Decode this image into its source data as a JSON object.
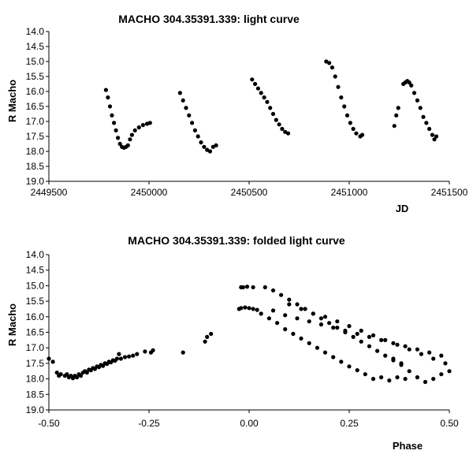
{
  "chart_data": [
    {
      "type": "scatter",
      "title": "MACHO 304.35391.339: light curve",
      "xlabel": "JD",
      "ylabel": "R Macho",
      "xlim": [
        2449500,
        2451500
      ],
      "ylim": [
        14.0,
        19.0
      ],
      "y_inverted": true,
      "x_ticks": [
        2449500,
        2450000,
        2450500,
        2451000,
        2451500
      ],
      "x_tick_labels": [
        "2449500",
        "2450000",
        "2450500",
        "2451000",
        "2451500"
      ],
      "y_ticks": [
        14.0,
        14.5,
        15.0,
        15.5,
        16.0,
        16.5,
        17.0,
        17.5,
        18.0,
        18.5,
        19.0
      ],
      "y_tick_labels": [
        "14.0",
        "14.5",
        "15.0",
        "15.5",
        "16.0",
        "16.5",
        "17.0",
        "17.5",
        "18.0",
        "18.5",
        "19.0"
      ],
      "grid": false,
      "series": [
        {
          "marker_color": "#000000",
          "points": [
            [
              2449785,
              15.95
            ],
            [
              2449795,
              16.2
            ],
            [
              2449805,
              16.5
            ],
            [
              2449815,
              16.8
            ],
            [
              2449825,
              17.05
            ],
            [
              2449835,
              17.3
            ],
            [
              2449845,
              17.55
            ],
            [
              2449855,
              17.75
            ],
            [
              2449865,
              17.85
            ],
            [
              2449875,
              17.88
            ],
            [
              2449885,
              17.85
            ],
            [
              2449895,
              17.8
            ],
            [
              2449905,
              17.6
            ],
            [
              2449915,
              17.45
            ],
            [
              2449930,
              17.3
            ],
            [
              2449950,
              17.2
            ],
            [
              2449970,
              17.12
            ],
            [
              2449990,
              17.08
            ],
            [
              2450005,
              17.05
            ],
            [
              2450155,
              16.05
            ],
            [
              2450170,
              16.3
            ],
            [
              2450185,
              16.55
            ],
            [
              2450200,
              16.8
            ],
            [
              2450215,
              17.05
            ],
            [
              2450230,
              17.3
            ],
            [
              2450245,
              17.5
            ],
            [
              2450260,
              17.7
            ],
            [
              2450275,
              17.85
            ],
            [
              2450290,
              17.95
            ],
            [
              2450305,
              18.0
            ],
            [
              2450320,
              17.85
            ],
            [
              2450335,
              17.8
            ],
            [
              2450515,
              15.6
            ],
            [
              2450530,
              15.75
            ],
            [
              2450545,
              15.9
            ],
            [
              2450560,
              16.05
            ],
            [
              2450575,
              16.2
            ],
            [
              2450590,
              16.35
            ],
            [
              2450605,
              16.55
            ],
            [
              2450620,
              16.75
            ],
            [
              2450635,
              16.95
            ],
            [
              2450650,
              17.1
            ],
            [
              2450665,
              17.25
            ],
            [
              2450680,
              17.35
            ],
            [
              2450695,
              17.4
            ],
            [
              2450885,
              15.0
            ],
            [
              2450900,
              15.05
            ],
            [
              2450915,
              15.2
            ],
            [
              2450930,
              15.5
            ],
            [
              2450945,
              15.85
            ],
            [
              2450960,
              16.2
            ],
            [
              2450975,
              16.5
            ],
            [
              2450990,
              16.8
            ],
            [
              2451005,
              17.05
            ],
            [
              2451020,
              17.25
            ],
            [
              2451035,
              17.4
            ],
            [
              2451055,
              17.5
            ],
            [
              2451065,
              17.45
            ],
            [
              2451225,
              17.15
            ],
            [
              2451235,
              16.8
            ],
            [
              2451245,
              16.55
            ],
            [
              2451270,
              15.75
            ],
            [
              2451280,
              15.7
            ],
            [
              2451290,
              15.65
            ],
            [
              2451300,
              15.7
            ],
            [
              2451310,
              15.8
            ],
            [
              2451325,
              16.05
            ],
            [
              2451340,
              16.3
            ],
            [
              2451355,
              16.55
            ],
            [
              2451370,
              16.85
            ],
            [
              2451385,
              17.05
            ],
            [
              2451400,
              17.25
            ],
            [
              2451415,
              17.45
            ],
            [
              2451425,
              17.6
            ],
            [
              2451435,
              17.5
            ]
          ]
        }
      ]
    },
    {
      "type": "scatter",
      "title": "MACHO 304.35391.339: folded light curve",
      "xlabel": "Phase",
      "ylabel": "R Macho",
      "xlim": [
        -0.5,
        0.5
      ],
      "ylim": [
        14.0,
        19.0
      ],
      "y_inverted": true,
      "x_ticks": [
        -0.5,
        -0.25,
        0.0,
        0.25,
        0.5
      ],
      "x_tick_labels": [
        "-0.50",
        "-0.25",
        "0.00",
        "0.25",
        "0.50"
      ],
      "y_ticks": [
        14.0,
        14.5,
        15.0,
        15.5,
        16.0,
        16.5,
        17.0,
        17.5,
        18.0,
        18.5,
        19.0
      ],
      "y_tick_labels": [
        "14.0",
        "14.5",
        "15.0",
        "15.5",
        "16.0",
        "16.5",
        "17.0",
        "17.5",
        "18.0",
        "18.5",
        "19.0"
      ],
      "grid": false,
      "series": [
        {
          "marker_color": "#000000",
          "points": [
            [
              -0.5,
              17.35
            ],
            [
              -0.49,
              17.45
            ],
            [
              -0.48,
              17.8
            ],
            [
              -0.475,
              17.9
            ],
            [
              -0.47,
              17.85
            ],
            [
              -0.46,
              17.9
            ],
            [
              -0.455,
              17.85
            ],
            [
              -0.45,
              17.95
            ],
            [
              -0.445,
              17.9
            ],
            [
              -0.44,
              17.98
            ],
            [
              -0.435,
              17.9
            ],
            [
              -0.43,
              17.95
            ],
            [
              -0.425,
              17.85
            ],
            [
              -0.42,
              17.9
            ],
            [
              -0.415,
              17.8
            ],
            [
              -0.41,
              17.75
            ],
            [
              -0.405,
              17.8
            ],
            [
              -0.4,
              17.7
            ],
            [
              -0.395,
              17.72
            ],
            [
              -0.39,
              17.65
            ],
            [
              -0.385,
              17.68
            ],
            [
              -0.38,
              17.6
            ],
            [
              -0.375,
              17.62
            ],
            [
              -0.37,
              17.55
            ],
            [
              -0.365,
              17.58
            ],
            [
              -0.36,
              17.5
            ],
            [
              -0.355,
              17.52
            ],
            [
              -0.35,
              17.45
            ],
            [
              -0.345,
              17.47
            ],
            [
              -0.34,
              17.4
            ],
            [
              -0.335,
              17.42
            ],
            [
              -0.33,
              17.35
            ],
            [
              -0.325,
              17.2
            ],
            [
              -0.32,
              17.35
            ],
            [
              -0.31,
              17.3
            ],
            [
              -0.3,
              17.28
            ],
            [
              -0.29,
              17.25
            ],
            [
              -0.28,
              17.2
            ],
            [
              -0.26,
              17.12
            ],
            [
              -0.245,
              17.15
            ],
            [
              -0.24,
              17.08
            ],
            [
              -0.165,
              17.15
            ],
            [
              -0.11,
              16.8
            ],
            [
              -0.105,
              16.65
            ],
            [
              -0.095,
              16.55
            ],
            [
              -0.025,
              15.75
            ],
            [
              -0.02,
              15.72
            ],
            [
              -0.01,
              15.7
            ],
            [
              0.0,
              15.72
            ],
            [
              0.01,
              15.75
            ],
            [
              0.02,
              15.78
            ],
            [
              -0.02,
              15.05
            ],
            [
              -0.015,
              15.05
            ],
            [
              -0.005,
              15.03
            ],
            [
              0.01,
              15.05
            ],
            [
              0.03,
              15.9
            ],
            [
              0.05,
              16.05
            ],
            [
              0.07,
              16.2
            ],
            [
              0.09,
              16.4
            ],
            [
              0.11,
              16.55
            ],
            [
              0.13,
              16.7
            ],
            [
              0.15,
              16.85
            ],
            [
              0.17,
              17.0
            ],
            [
              0.19,
              17.15
            ],
            [
              0.21,
              17.3
            ],
            [
              0.23,
              17.45
            ],
            [
              0.25,
              17.6
            ],
            [
              0.27,
              17.72
            ],
            [
              0.29,
              17.85
            ],
            [
              0.31,
              18.0
            ],
            [
              0.33,
              17.95
            ],
            [
              0.35,
              18.05
            ],
            [
              0.37,
              17.95
            ],
            [
              0.39,
              18.0
            ],
            [
              0.04,
              15.05
            ],
            [
              0.06,
              15.15
            ],
            [
              0.08,
              15.3
            ],
            [
              0.1,
              15.45
            ],
            [
              0.12,
              15.6
            ],
            [
              0.14,
              15.75
            ],
            [
              0.16,
              15.9
            ],
            [
              0.18,
              16.05
            ],
            [
              0.2,
              16.2
            ],
            [
              0.22,
              16.35
            ],
            [
              0.24,
              16.5
            ],
            [
              0.26,
              16.65
            ],
            [
              0.28,
              16.8
            ],
            [
              0.3,
              16.95
            ],
            [
              0.32,
              17.1
            ],
            [
              0.34,
              17.25
            ],
            [
              0.36,
              17.4
            ],
            [
              0.38,
              17.5
            ],
            [
              0.06,
              15.8
            ],
            [
              0.09,
              15.95
            ],
            [
              0.12,
              16.05
            ],
            [
              0.15,
              16.15
            ],
            [
              0.18,
              16.25
            ],
            [
              0.21,
              16.35
            ],
            [
              0.24,
              16.45
            ],
            [
              0.27,
              16.55
            ],
            [
              0.3,
              16.65
            ],
            [
              0.33,
              16.75
            ],
            [
              0.36,
              16.85
            ],
            [
              0.39,
              16.95
            ],
            [
              0.42,
              17.05
            ],
            [
              0.45,
              17.15
            ],
            [
              0.48,
              17.25
            ],
            [
              0.1,
              15.6
            ],
            [
              0.13,
              15.75
            ],
            [
              0.16,
              15.9
            ],
            [
              0.19,
              16.0
            ],
            [
              0.22,
              16.15
            ],
            [
              0.25,
              16.3
            ],
            [
              0.28,
              16.45
            ],
            [
              0.31,
              16.6
            ],
            [
              0.34,
              16.75
            ],
            [
              0.37,
              16.9
            ],
            [
              0.4,
              17.05
            ],
            [
              0.43,
              17.2
            ],
            [
              0.46,
              17.35
            ],
            [
              0.49,
              17.5
            ],
            [
              0.36,
              17.35
            ],
            [
              0.38,
              17.55
            ],
            [
              0.4,
              17.75
            ],
            [
              0.42,
              17.95
            ],
            [
              0.44,
              18.1
            ],
            [
              0.46,
              18.0
            ],
            [
              0.48,
              17.85
            ],
            [
              0.5,
              17.75
            ]
          ]
        }
      ]
    }
  ]
}
